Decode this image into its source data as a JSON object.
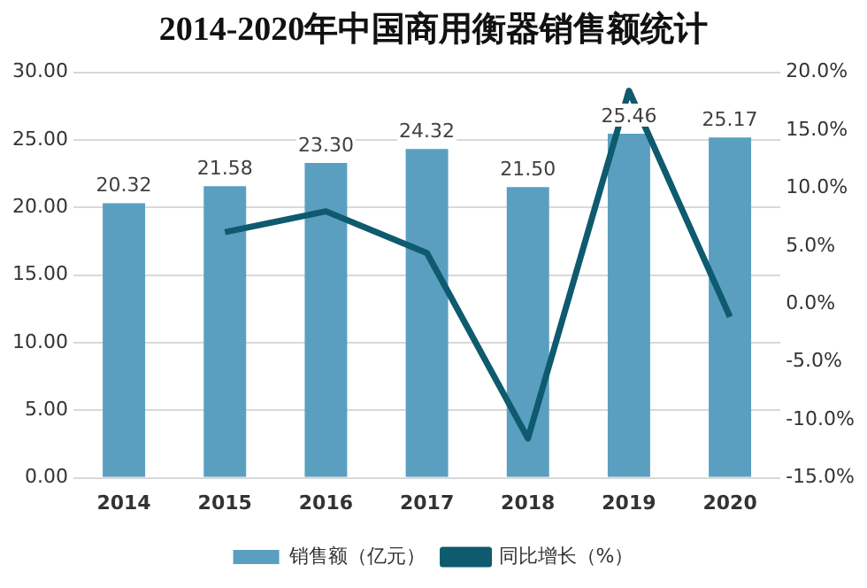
{
  "chart_data": {
    "type": "bar",
    "title": "2014-2020年中国商用衡器销售额统计",
    "categories": [
      "2014",
      "2015",
      "2016",
      "2017",
      "2018",
      "2019",
      "2020"
    ],
    "series": [
      {
        "name": "销售额（亿元）",
        "color": "#5a9fc0",
        "values": [
          20.32,
          21.58,
          23.3,
          24.32,
          21.5,
          25.46,
          25.17
        ],
        "value_labels": [
          "20.32",
          "21.58",
          "23.30",
          "24.32",
          "21.50",
          "25.46",
          "25.17"
        ]
      },
      {
        "name": "同比增长（%）",
        "type": "line",
        "axis": "y2",
        "color": "#0e5a6e",
        "values": [
          null,
          6.2,
          8.0,
          4.4,
          -11.6,
          18.4,
          -1.1
        ]
      }
    ],
    "ylim": [
      0,
      30
    ],
    "yticks": [
      {
        "value": 0,
        "label": "0.00"
      },
      {
        "value": 5,
        "label": "5.00"
      },
      {
        "value": 10,
        "label": "10.00"
      },
      {
        "value": 15,
        "label": "15.00"
      },
      {
        "value": 20,
        "label": "20.00"
      },
      {
        "value": 25,
        "label": "25.00"
      },
      {
        "value": 30,
        "label": "30.00"
      }
    ],
    "y2lim": [
      -15,
      20
    ],
    "y2ticks": [
      {
        "value": -15,
        "label": "-15.0%"
      },
      {
        "value": -10,
        "label": "-10.0%"
      },
      {
        "value": -5,
        "label": "-5.0%"
      },
      {
        "value": 0,
        "label": "0.0%"
      },
      {
        "value": 5,
        "label": "5.0%"
      },
      {
        "value": 10,
        "label": "10.0%"
      },
      {
        "value": 15,
        "label": "15.0%"
      },
      {
        "value": 20,
        "label": "20.0%"
      }
    ],
    "grid": "y",
    "legend": "bottom",
    "marker": "none",
    "line_style": "solid"
  }
}
